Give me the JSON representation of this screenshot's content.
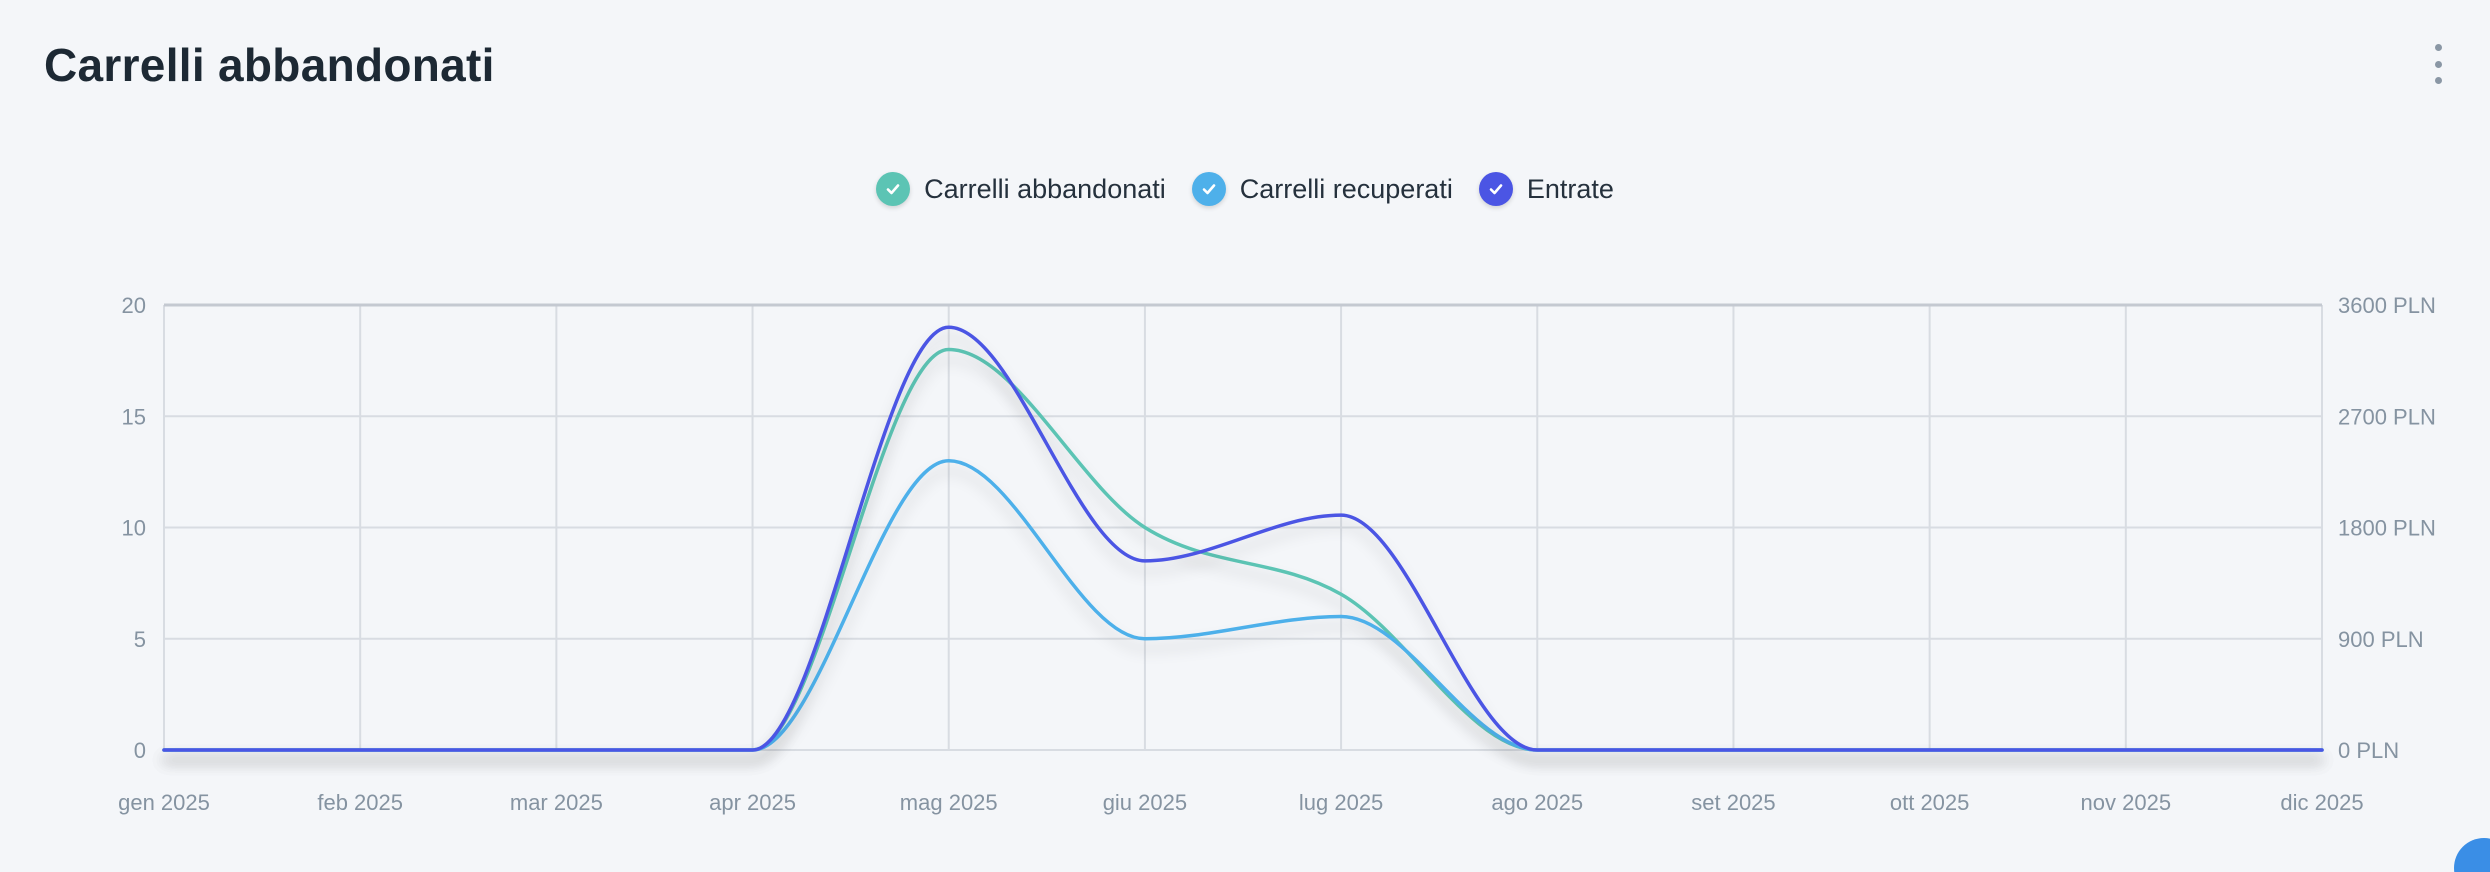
{
  "header": {
    "title": "Carrelli abbandonati"
  },
  "colors": {
    "abbandonati": "#5cc4b4",
    "recuperati": "#4eb0ea",
    "entrate": "#4b55e4",
    "grid": "#d8dce2",
    "axis": "#c4c9d1"
  },
  "legend": [
    {
      "label": "Carrelli abbandonati",
      "color": "#5cc4b4"
    },
    {
      "label": "Carrelli recuperati",
      "color": "#4eb0ea"
    },
    {
      "label": "Entrate",
      "color": "#4b55e4"
    }
  ],
  "chart_data": {
    "type": "line",
    "title": "",
    "categories": [
      "gen 2025",
      "feb 2025",
      "mar 2025",
      "apr 2025",
      "mag 2025",
      "giu 2025",
      "lug 2025",
      "ago 2025",
      "set 2025",
      "ott 2025",
      "nov 2025",
      "dic 2025"
    ],
    "series": [
      {
        "name": "Carrelli abbandonati",
        "axis": "left",
        "color": "#5cc4b4",
        "values": [
          0,
          0,
          0,
          0,
          18,
          10,
          7,
          0,
          0,
          0,
          0,
          0
        ]
      },
      {
        "name": "Carrelli recuperati",
        "axis": "left",
        "color": "#4eb0ea",
        "values": [
          0,
          0,
          0,
          0,
          13,
          5,
          6,
          0,
          0,
          0,
          0,
          0
        ]
      },
      {
        "name": "Entrate",
        "axis": "right",
        "color": "#4b55e4",
        "values": [
          0,
          0,
          0,
          0,
          3420,
          1530,
          1900,
          0,
          0,
          0,
          0,
          0
        ]
      }
    ],
    "y_left": {
      "min": 0,
      "max": 20,
      "ticks": [
        0,
        5,
        10,
        15,
        20
      ],
      "tick_labels": [
        "0",
        "5",
        "10",
        "15",
        "20"
      ]
    },
    "y_right": {
      "min": 0,
      "max": 3600,
      "ticks": [
        0,
        900,
        1800,
        2700,
        3600
      ],
      "tick_labels": [
        "0 PLN",
        "900 PLN",
        "1800 PLN",
        "2700 PLN",
        "3600 PLN"
      ]
    },
    "grid": true,
    "smooth": true,
    "legend_position": "top-center"
  }
}
